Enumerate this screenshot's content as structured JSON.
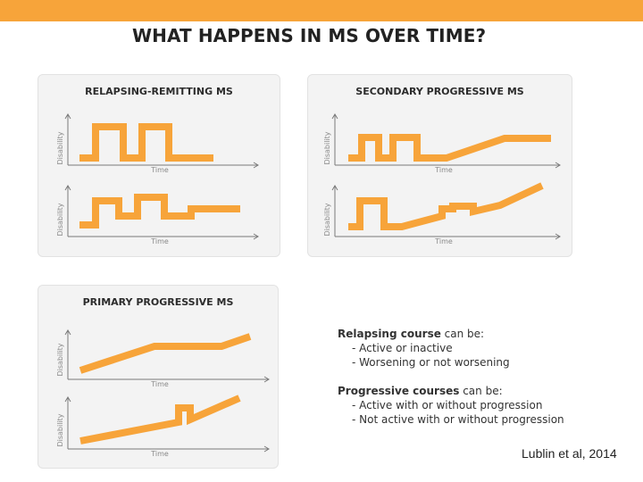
{
  "title": "WHAT HAPPENS IN MS OVER TIME?",
  "colors": {
    "accent": "#f7a43a",
    "line_fill": "#f7a43a",
    "line_edge": "#ee8b2c",
    "axis": "#7a7a7a",
    "panel_bg": "#f3f3f3"
  },
  "axes": {
    "y_label": "Disability",
    "x_label": "Time"
  },
  "panels": [
    {
      "title": "RELAPSING-REMITTING MS"
    },
    {
      "title": "SECONDARY PROGRESSIVE MS"
    },
    {
      "title": "PRIMARY PROGRESSIVE MS"
    }
  ],
  "notes": {
    "relapsing": {
      "bold": "Relapsing course",
      "rest": " can be:",
      "items": [
        "- Active or inactive",
        "- Worsening or not worsening"
      ]
    },
    "progressive": {
      "bold": "Progressive courses",
      "rest": " can be:",
      "items": [
        "- Active with or without progression",
        "- Not active with or without progression"
      ]
    }
  },
  "citation": "Lublin et al, 2014"
}
